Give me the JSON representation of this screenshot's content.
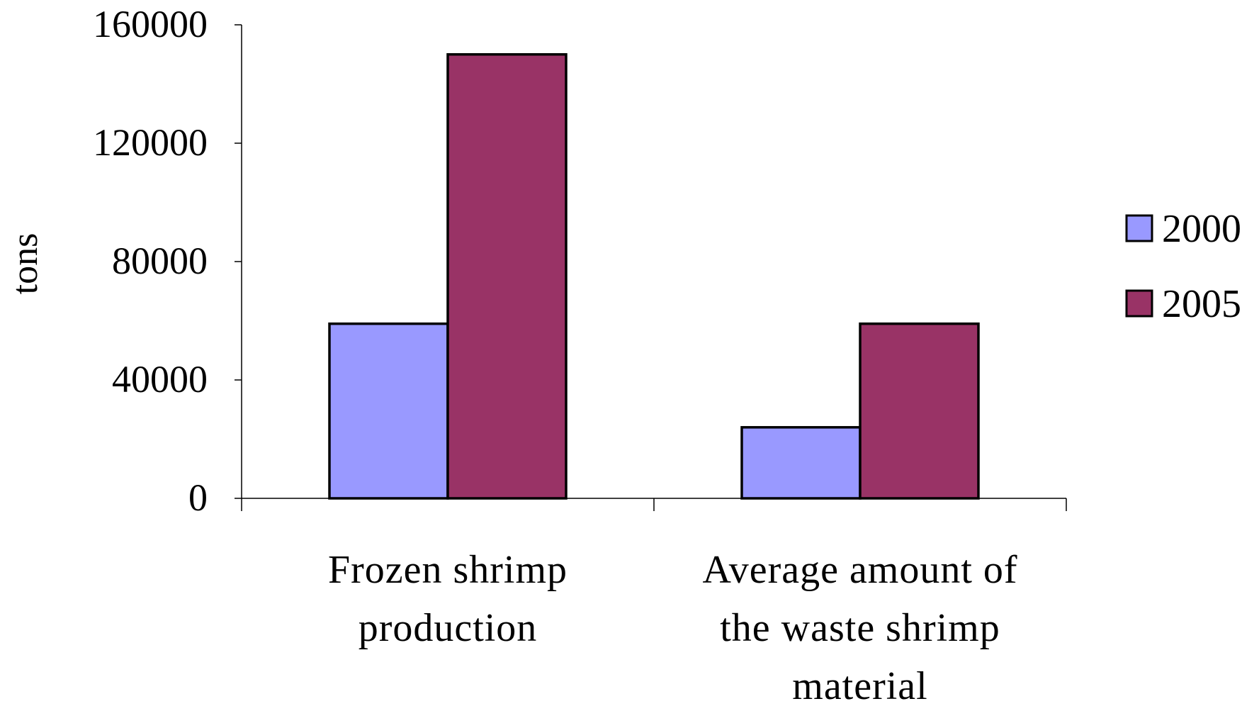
{
  "chart_data": {
    "type": "bar",
    "title": "",
    "xlabel": "",
    "ylabel": "tons",
    "categories": [
      [
        "Frozen shrimp",
        "production"
      ],
      [
        "Average amount of",
        "the waste shrimp",
        "material"
      ]
    ],
    "series": [
      {
        "name": "2000",
        "color": "#9999ff",
        "values": [
          59000,
          24000
        ]
      },
      {
        "name": "2005",
        "color": "#993366",
        "values": [
          150000,
          59000
        ]
      }
    ],
    "ylim": [
      0,
      160000
    ],
    "yticks": [
      "0",
      "40000",
      "80000",
      "120000",
      "160000"
    ],
    "grid": false,
    "legend": "right"
  }
}
